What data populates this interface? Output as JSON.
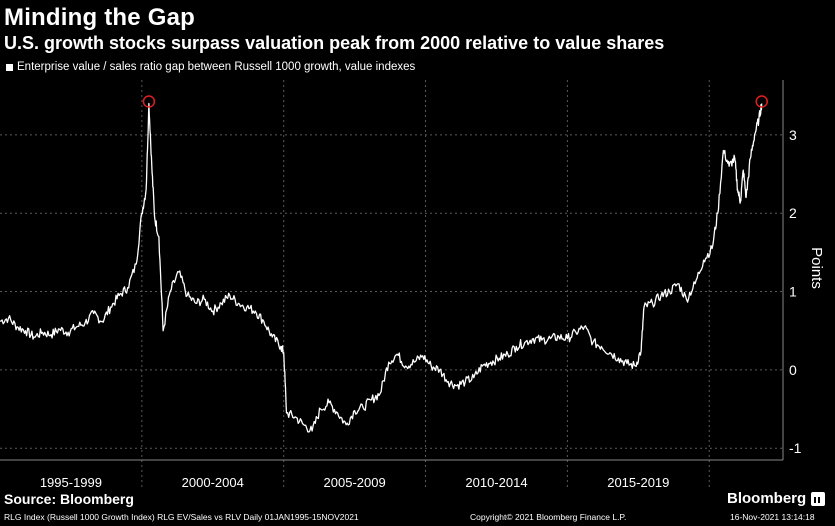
{
  "header": {
    "title": "Minding the Gap",
    "subtitle": "U.S. growth stocks surpass valuation peak from 2000 relative to value shares"
  },
  "footer": {
    "source": "Source: Bloomberg",
    "brand": "Bloomberg",
    "left_note": "RLG Index (Russell 1000 Growth Index) RLG EV/Sales vs RLV  Daily 01JAN1995-15NOV2021",
    "copyright": "Copyright© 2021 Bloomberg Finance L.P.",
    "timestamp": "16-Nov-2021 13:14:18"
  },
  "chart_data": {
    "type": "line",
    "series": [
      {
        "name": "Enterprise value / sales ratio gap between Russell 1000 growth, value indexes",
        "color": "#ffffff",
        "points": [
          [
            1995.0,
            0.62
          ],
          [
            1995.3,
            0.66
          ],
          [
            1995.6,
            0.55
          ],
          [
            1995.9,
            0.5
          ],
          [
            1996.2,
            0.42
          ],
          [
            1996.5,
            0.48
          ],
          [
            1996.8,
            0.45
          ],
          [
            1997.1,
            0.52
          ],
          [
            1997.4,
            0.48
          ],
          [
            1997.7,
            0.55
          ],
          [
            1998.0,
            0.6
          ],
          [
            1998.3,
            0.72
          ],
          [
            1998.6,
            0.62
          ],
          [
            1998.9,
            0.8
          ],
          [
            1999.2,
            0.95
          ],
          [
            1999.5,
            1.05
          ],
          [
            1999.8,
            1.35
          ],
          [
            2000.0,
            2.0
          ],
          [
            2000.15,
            2.3
          ],
          [
            2000.25,
            3.4
          ],
          [
            2000.35,
            2.6
          ],
          [
            2000.45,
            1.95
          ],
          [
            2000.6,
            1.7
          ],
          [
            2000.75,
            0.5
          ],
          [
            2001.0,
            1.0
          ],
          [
            2001.3,
            1.25
          ],
          [
            2001.6,
            0.95
          ],
          [
            2001.9,
            0.85
          ],
          [
            2002.2,
            0.9
          ],
          [
            2002.5,
            0.75
          ],
          [
            2002.8,
            0.85
          ],
          [
            2003.1,
            0.95
          ],
          [
            2003.4,
            0.85
          ],
          [
            2003.7,
            0.8
          ],
          [
            2004.0,
            0.75
          ],
          [
            2004.3,
            0.62
          ],
          [
            2004.6,
            0.42
          ],
          [
            2004.9,
            0.3
          ],
          [
            2005.0,
            0.22
          ],
          [
            2005.1,
            -0.55
          ],
          [
            2005.4,
            -0.6
          ],
          [
            2005.7,
            -0.7
          ],
          [
            2006.0,
            -0.78
          ],
          [
            2006.3,
            -0.5
          ],
          [
            2006.6,
            -0.42
          ],
          [
            2006.9,
            -0.55
          ],
          [
            2007.2,
            -0.7
          ],
          [
            2007.5,
            -0.52
          ],
          [
            2007.8,
            -0.48
          ],
          [
            2008.1,
            -0.38
          ],
          [
            2008.4,
            -0.3
          ],
          [
            2008.7,
            0.1
          ],
          [
            2009.0,
            0.2
          ],
          [
            2009.3,
            0.05
          ],
          [
            2009.6,
            0.1
          ],
          [
            2009.9,
            0.18
          ],
          [
            2010.2,
            0.05
          ],
          [
            2010.5,
            0.0
          ],
          [
            2010.8,
            -0.15
          ],
          [
            2011.1,
            -0.2
          ],
          [
            2011.4,
            -0.15
          ],
          [
            2011.7,
            -0.1
          ],
          [
            2012.0,
            0.05
          ],
          [
            2012.3,
            0.1
          ],
          [
            2012.6,
            0.15
          ],
          [
            2012.9,
            0.2
          ],
          [
            2013.2,
            0.3
          ],
          [
            2013.5,
            0.35
          ],
          [
            2013.8,
            0.4
          ],
          [
            2014.1,
            0.38
          ],
          [
            2014.4,
            0.4
          ],
          [
            2014.7,
            0.42
          ],
          [
            2015.0,
            0.4
          ],
          [
            2015.3,
            0.48
          ],
          [
            2015.6,
            0.55
          ],
          [
            2015.9,
            0.35
          ],
          [
            2016.2,
            0.3
          ],
          [
            2016.5,
            0.22
          ],
          [
            2016.8,
            0.15
          ],
          [
            2017.1,
            0.08
          ],
          [
            2017.4,
            0.05
          ],
          [
            2017.6,
            0.25
          ],
          [
            2017.7,
            0.8
          ],
          [
            2018.0,
            0.85
          ],
          [
            2018.3,
            0.95
          ],
          [
            2018.6,
            1.0
          ],
          [
            2018.9,
            1.1
          ],
          [
            2019.2,
            0.9
          ],
          [
            2019.5,
            1.1
          ],
          [
            2019.8,
            1.4
          ],
          [
            2020.1,
            1.55
          ],
          [
            2020.3,
            2.0
          ],
          [
            2020.5,
            2.8
          ],
          [
            2020.7,
            2.6
          ],
          [
            2020.9,
            2.7
          ],
          [
            2021.0,
            2.3
          ],
          [
            2021.1,
            2.15
          ],
          [
            2021.2,
            2.55
          ],
          [
            2021.3,
            2.2
          ],
          [
            2021.45,
            2.7
          ],
          [
            2021.6,
            3.0
          ],
          [
            2021.75,
            3.2
          ],
          [
            2021.85,
            3.4
          ]
        ]
      }
    ],
    "peaks": [
      [
        2000.25,
        3.4
      ],
      [
        2021.85,
        3.4
      ]
    ],
    "peak_marker_color": "#e02020",
    "ylabel": "Points",
    "y_ticks": [
      "3",
      "2",
      "1",
      "0",
      "-1"
    ],
    "y_tick_values": [
      3,
      2,
      1,
      0,
      -1
    ],
    "ylim": [
      -1.15,
      3.7
    ],
    "xlim": [
      1995,
      2022.6
    ],
    "x_groups": [
      "1995-1999",
      "2000-2004",
      "2005-2009",
      "2010-2014",
      "2015-2019"
    ],
    "grid": true
  }
}
